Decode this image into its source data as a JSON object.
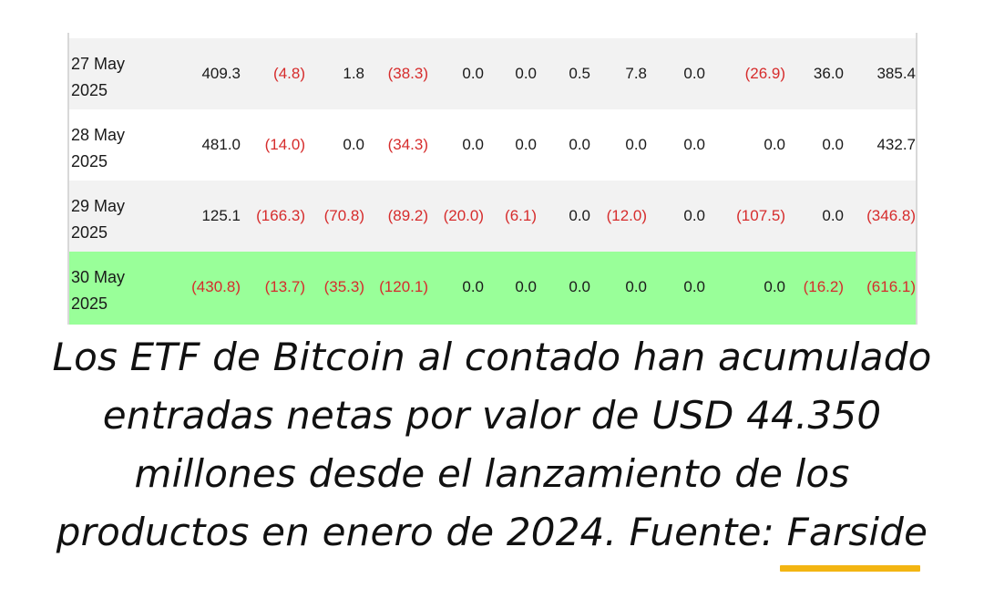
{
  "table": {
    "rows": [
      {
        "date_line1": "27 May",
        "date_line2": "2025",
        "style": "shade",
        "values": [
          "409.3",
          "(4.8)",
          "1.8",
          "(38.3)",
          "0.0",
          "0.0",
          "0.5",
          "7.8",
          "0.0",
          "(26.9)",
          "36.0",
          "385.4"
        ]
      },
      {
        "date_line1": "28 May",
        "date_line2": "2025",
        "style": "plain",
        "values": [
          "481.0",
          "(14.0)",
          "0.0",
          "(34.3)",
          "0.0",
          "0.0",
          "0.0",
          "0.0",
          "0.0",
          "0.0",
          "0.0",
          "432.7"
        ]
      },
      {
        "date_line1": "29 May",
        "date_line2": "2025",
        "style": "shade",
        "values": [
          "125.1",
          "(166.3)",
          "(70.8)",
          "(89.2)",
          "(20.0)",
          "(6.1)",
          "0.0",
          "(12.0)",
          "0.0",
          "(107.5)",
          "0.0",
          "(346.8)"
        ]
      },
      {
        "date_line1": "30 May",
        "date_line2": "2025",
        "style": "highlight",
        "values": [
          "(430.8)",
          "(13.7)",
          "(35.3)",
          "(120.1)",
          "0.0",
          "0.0",
          "0.0",
          "0.0",
          "0.0",
          "0.0",
          "(16.2)",
          "(616.1)"
        ]
      }
    ]
  },
  "caption": {
    "text": "Los ETF de Bitcoin al contado han acumulado entradas netas por valor de USD 44.350 millones desde el lanzamiento de los productos en enero de 2024. Fuente: ",
    "source_label": "Farside"
  },
  "colors": {
    "negative": "#d62c2c",
    "positive": "#1a1a1a",
    "row_shade": "#f2f2f2",
    "row_highlight": "#99ff99",
    "source_underline": "#f3b512"
  }
}
